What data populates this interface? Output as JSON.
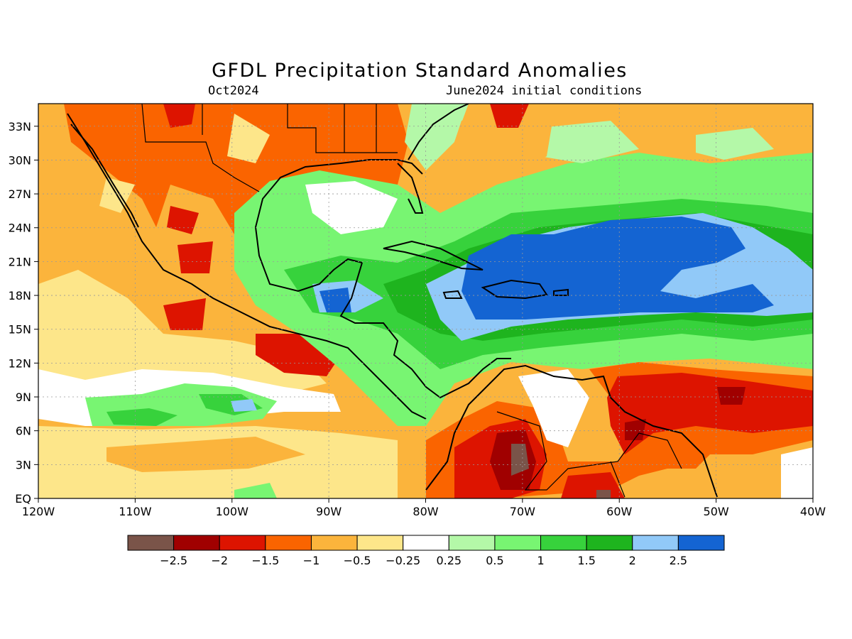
{
  "title": "GFDL Precipitation Standard Anomalies",
  "subtitle_left": "Oct2024",
  "subtitle_right": "June2024 initial conditions",
  "map": {
    "lon_range": [
      -120,
      -40
    ],
    "lat_range": [
      0,
      35
    ],
    "x_ticks": [
      "120W",
      "110W",
      "100W",
      "90W",
      "80W",
      "70W",
      "60W",
      "50W",
      "40W"
    ],
    "y_ticks": [
      "EQ",
      "3N",
      "6N",
      "9N",
      "12N",
      "15N",
      "18N",
      "21N",
      "24N",
      "27N",
      "30N",
      "33N"
    ],
    "grid": "dotted"
  },
  "colorbar": {
    "colors": [
      "#7a5449",
      "#a00000",
      "#dd1400",
      "#fa6400",
      "#fbb43c",
      "#fde68a",
      "#ffffff",
      "#b4f8a8",
      "#78f572",
      "#37d23c",
      "#1eb41e",
      "#91c9f8",
      "#1464d2"
    ],
    "labels": [
      "-2.5",
      "-2",
      "-1.5",
      "-1",
      "-0.5",
      "-0.25",
      "0.25",
      "0.5",
      "1",
      "1.5",
      "2",
      "2.5"
    ]
  },
  "palette": {
    "brown": "#7a5449",
    "darkred": "#a00000",
    "red": "#dd1400",
    "orange": "#fa6400",
    "lightorange": "#fbb43c",
    "yellow": "#fde68a",
    "white": "#ffffff",
    "lightgreen": "#b4f8a8",
    "green": "#78f572",
    "midgreen": "#37d23c",
    "darkgreen": "#1eb41e",
    "lightblue": "#91c9f8",
    "blue": "#1464d2"
  }
}
